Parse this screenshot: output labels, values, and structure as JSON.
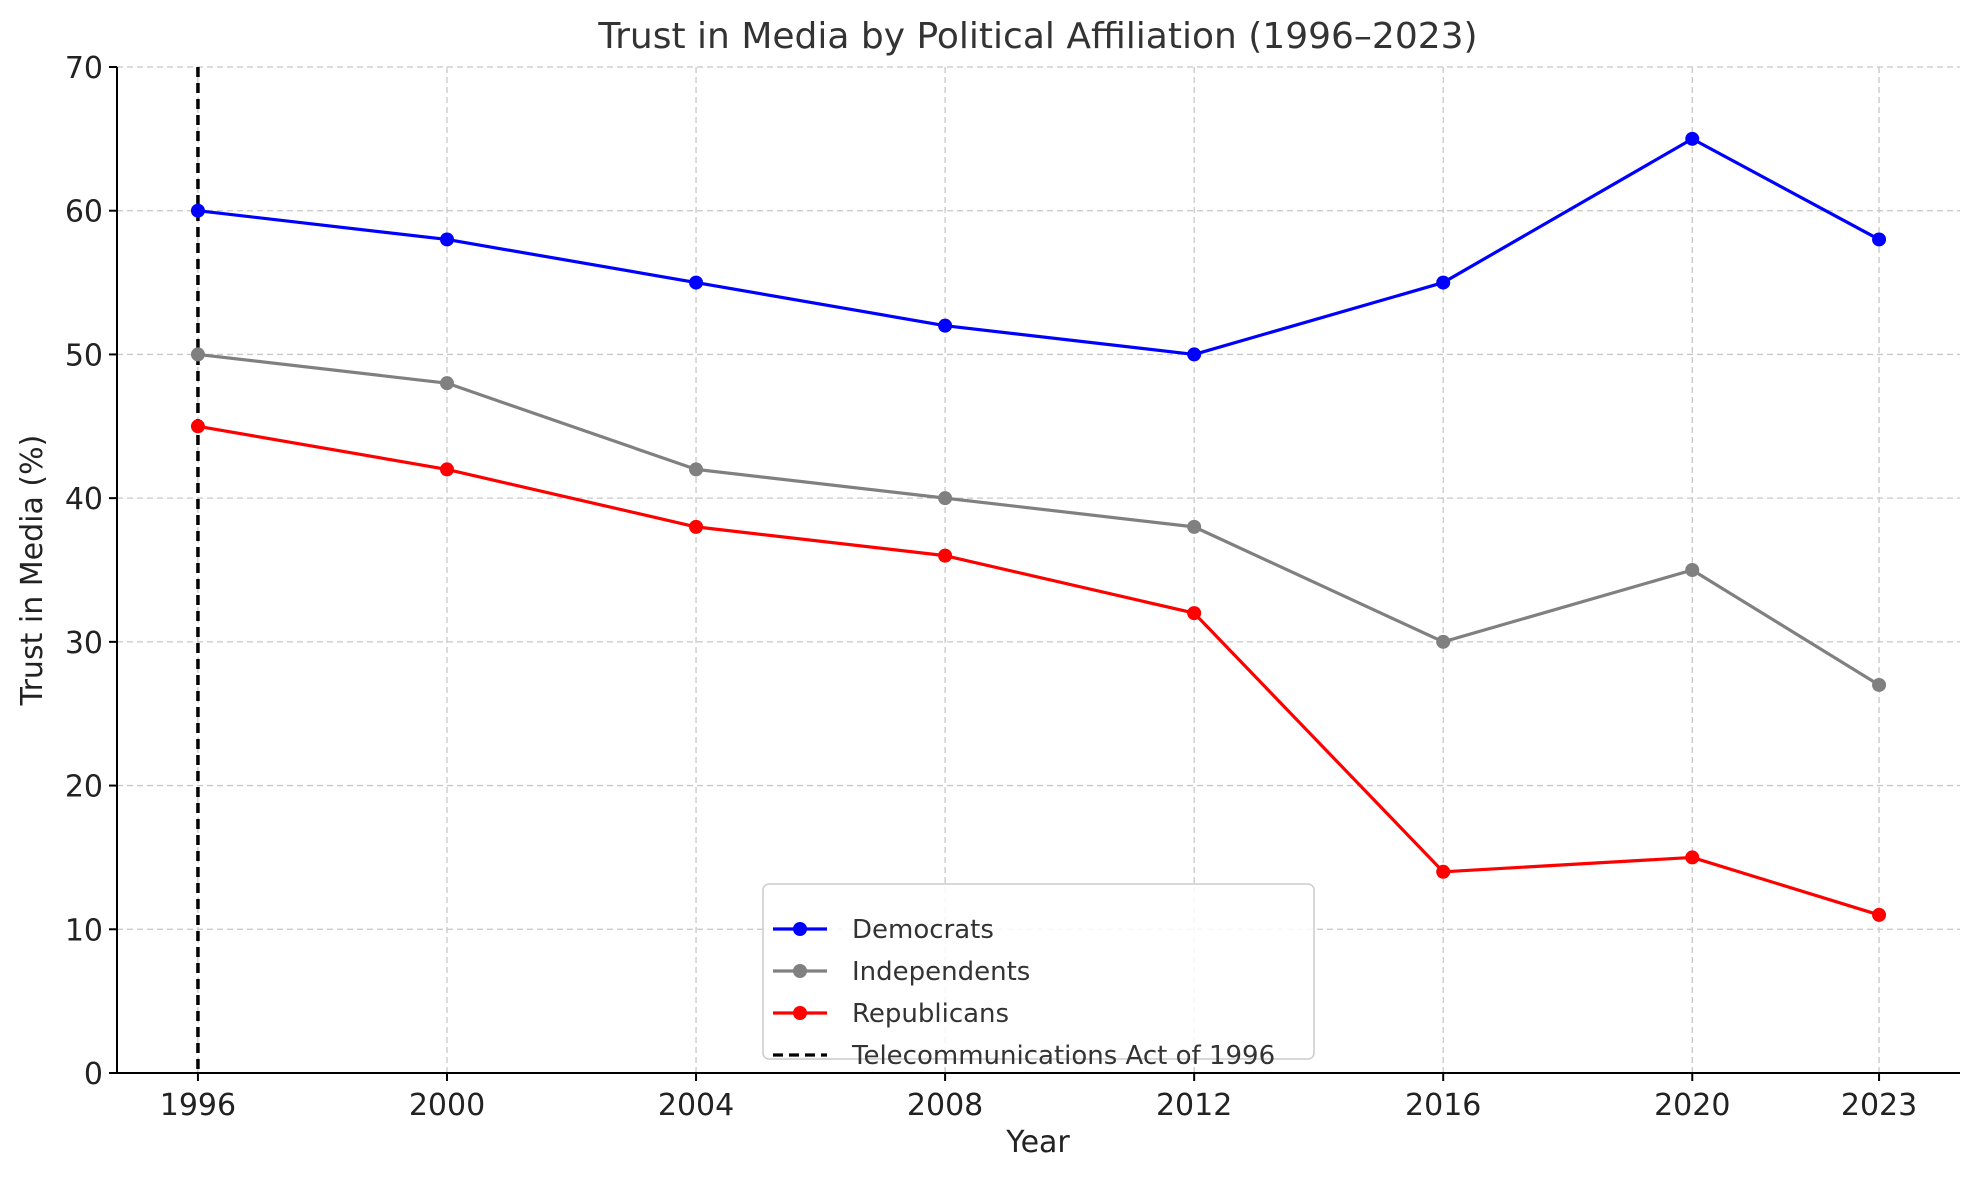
{
  "chart_data": {
    "type": "line",
    "title": "Trust in Media by Political Affiliation (1996–2023)",
    "xlabel": "Year",
    "ylabel": "Trust in Media (%)",
    "x": [
      1996,
      2000,
      2004,
      2008,
      2012,
      2016,
      2020,
      2023
    ],
    "xticks": [
      "1996",
      "2000",
      "2004",
      "2008",
      "2012",
      "2016",
      "2020",
      "2023"
    ],
    "yticks": [
      "0",
      "10",
      "20",
      "30",
      "40",
      "50",
      "60",
      "70"
    ],
    "ylim": [
      0,
      70
    ],
    "xlim": [
      1994.7,
      2024.3
    ],
    "grid": true,
    "legend_position": "bottom-center",
    "series": [
      {
        "name": "Democrats",
        "color": "#0000ff",
        "values": [
          60,
          58,
          55,
          52,
          50,
          55,
          65,
          58
        ]
      },
      {
        "name": "Independents",
        "color": "#808080",
        "values": [
          50,
          48,
          42,
          40,
          38,
          30,
          35,
          27
        ]
      },
      {
        "name": "Republicans",
        "color": "#ff0000",
        "values": [
          45,
          42,
          38,
          36,
          32,
          14,
          15,
          11
        ]
      }
    ],
    "annotations": [
      {
        "type": "vline",
        "x": 1996,
        "label": "Telecommunications Act of 1996",
        "color": "#000000",
        "style": "dashed"
      }
    ]
  }
}
